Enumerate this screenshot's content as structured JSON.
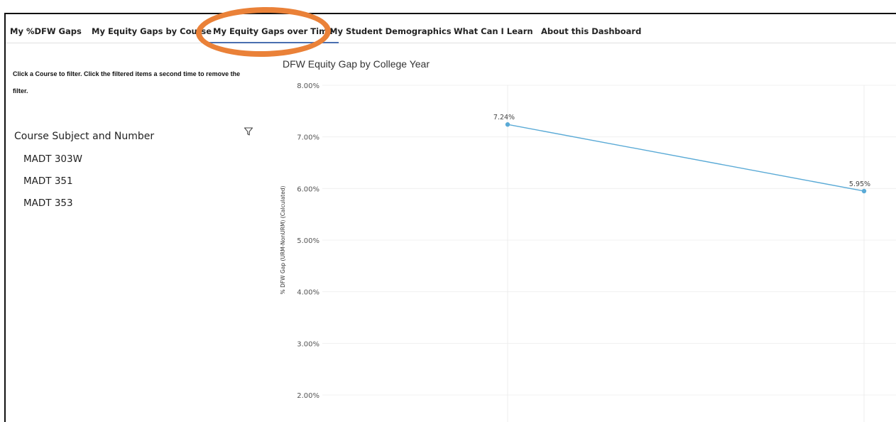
{
  "tabs": [
    {
      "label": "My %DFW Gaps"
    },
    {
      "label": "My Equity Gaps by Course"
    },
    {
      "label": "My Equity Gaps over Time"
    },
    {
      "label": "My Student Demographics"
    },
    {
      "label": "What Can I Learn"
    },
    {
      "label": "About this Dashboard"
    }
  ],
  "active_tab": "My Equity Gaps over Time",
  "annotation_color": "#ea8138",
  "left_panel": {
    "instructions": "Click a Course to filter.  Click the filtered items a second time to remove the filter.",
    "filter_title": "Course Subject and Number",
    "filter_icon": "funnel-icon",
    "courses": [
      "MADT 303W",
      "MADT 351",
      "MADT 353"
    ]
  },
  "chart_data": {
    "type": "line",
    "title": "DFW Equity Gap by College Year",
    "ylabel": "% DFW Gap (URM-NonURM) (Calculated)",
    "xlabel": "",
    "x": [
      "",
      ""
    ],
    "series": [
      {
        "values": [
          7.24,
          5.95
        ],
        "labels": [
          "7.24%",
          "5.95%"
        ],
        "color": "#5aaad6"
      }
    ],
    "yticks": [
      "8.00%",
      "7.00%",
      "6.00%",
      "5.00%",
      "4.00%",
      "3.00%",
      "2.00%"
    ],
    "ylim": [
      2.0,
      8.0
    ],
    "grid": true,
    "legend": "none"
  }
}
